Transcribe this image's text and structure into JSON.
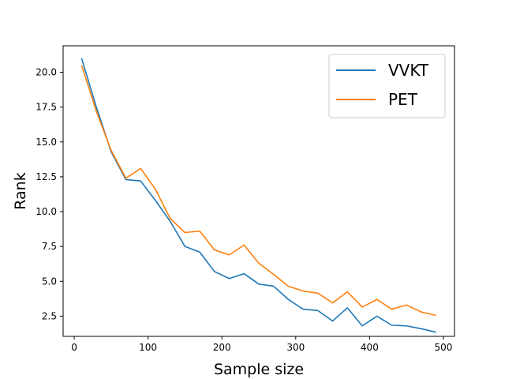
{
  "chart_data": {
    "type": "line",
    "title": "",
    "xlabel": "Sample size",
    "ylabel": "Rank",
    "xlim": [
      -15,
      515
    ],
    "ylim": [
      1.05,
      21.9
    ],
    "x_ticks": [
      0,
      100,
      200,
      300,
      400,
      500
    ],
    "y_ticks": [
      2.5,
      5.0,
      7.5,
      10.0,
      12.5,
      15.0,
      17.5,
      20.0
    ],
    "x_tick_labels": [
      "0",
      "100",
      "200",
      "300",
      "400",
      "500"
    ],
    "y_tick_labels": [
      "2.5",
      "5.0",
      "7.5",
      "10.0",
      "12.5",
      "15.0",
      "17.5",
      "20.0"
    ],
    "grid": false,
    "legend_position": "top-right",
    "x": [
      10,
      30,
      50,
      70,
      90,
      110,
      130,
      150,
      170,
      190,
      210,
      230,
      250,
      270,
      290,
      310,
      330,
      350,
      370,
      390,
      410,
      430,
      450,
      470,
      490
    ],
    "series": [
      {
        "name": "VVKT",
        "color": "#1f77b4",
        "values": [
          21.0,
          17.5,
          14.3,
          12.3,
          12.2,
          10.8,
          9.3,
          7.5,
          7.1,
          5.7,
          5.2,
          5.55,
          4.8,
          4.65,
          3.7,
          3.0,
          2.9,
          2.15,
          3.1,
          1.8,
          2.5,
          1.85,
          1.8,
          1.6,
          1.35
        ]
      },
      {
        "name": "PET",
        "color": "#ff7f0e",
        "values": [
          20.5,
          17.2,
          14.4,
          12.4,
          13.1,
          11.6,
          9.5,
          8.5,
          8.6,
          7.25,
          6.9,
          7.6,
          6.3,
          5.5,
          4.65,
          4.3,
          4.15,
          3.45,
          4.25,
          3.15,
          3.7,
          3.0,
          3.3,
          2.8,
          2.55
        ]
      }
    ]
  }
}
